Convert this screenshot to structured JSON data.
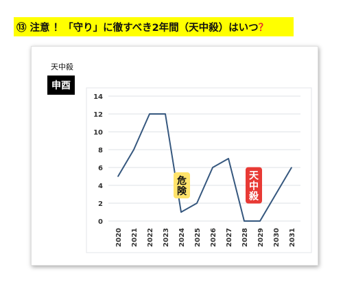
{
  "header": {
    "title_main": "⑬ 注意 ！「守り」に徹すべき2年間（天中殺）はいつ",
    "title_mark": "？",
    "bg_color": "#ffff00",
    "mark_color": "#e8322b"
  },
  "labels": {
    "small_label": "天中殺",
    "black_tag": "申酉"
  },
  "chart_data": {
    "type": "line",
    "x": [
      "2020",
      "2021",
      "2022",
      "2023",
      "2024",
      "2025",
      "2026",
      "2027",
      "2028",
      "2029",
      "2030",
      "2031"
    ],
    "series": [
      {
        "values": [
          5,
          8,
          12,
          12,
          1,
          2,
          6,
          7,
          0,
          0,
          3,
          6
        ],
        "color": "#35577e"
      }
    ],
    "ylim": [
      0,
      14
    ],
    "yticks": [
      0,
      2,
      4,
      6,
      8,
      10,
      12,
      14
    ],
    "grid": true,
    "annotations": [
      {
        "text": "危険",
        "bg": "#ffe36b",
        "color": "#111111",
        "at_x": "2024",
        "at_y": 4
      },
      {
        "text": "天中殺",
        "bg": "#e83a35",
        "color": "#ffffff",
        "at_x": "2028",
        "at_y": 4
      }
    ]
  }
}
